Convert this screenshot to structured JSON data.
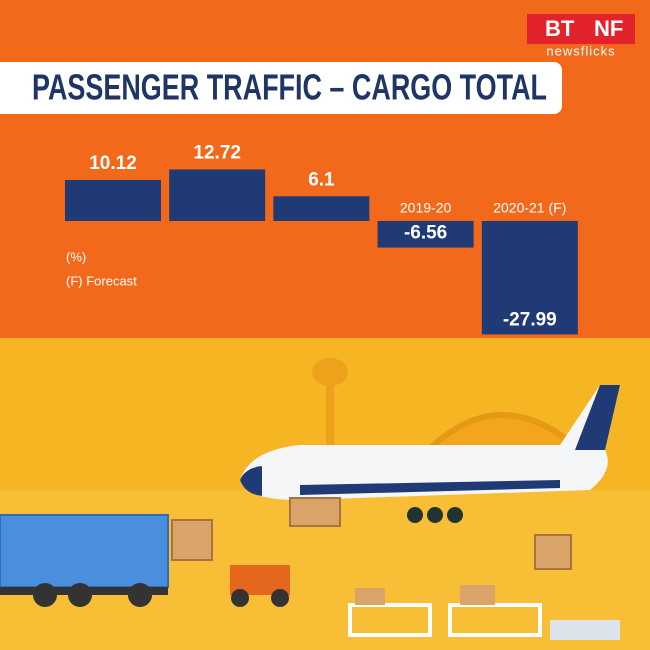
{
  "logo": {
    "left": "BT",
    "right": "NF",
    "tagline": "newsflicks"
  },
  "chart_data": {
    "type": "bar",
    "title": "PASSENGER TRAFFIC – CARGO TOTAL",
    "annotations": [
      "(%)",
      "(F) Forecast"
    ],
    "categories": [
      null,
      null,
      null,
      "2019-20",
      "2020-21 (F)"
    ],
    "values": [
      10.12,
      12.72,
      6.1,
      -6.56,
      -27.99
    ],
    "color": "#1f3a74"
  }
}
